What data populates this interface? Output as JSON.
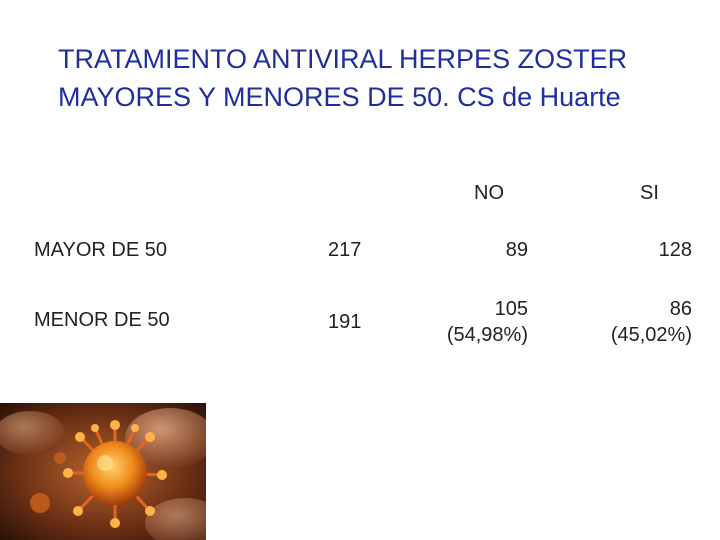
{
  "slide": {
    "title_line1": "TRATAMIENTO ANTIVIRAL HERPES ZOSTER",
    "title_line2": "MAYORES Y MENORES DE 50. CS de Huarte"
  },
  "table": {
    "headers": {
      "no": "NO",
      "si": "SI"
    },
    "rows": [
      {
        "label": "MAYOR DE 50",
        "total": "217",
        "no": "89",
        "no_pct": "",
        "si": "128",
        "si_pct": ""
      },
      {
        "label": "MENOR DE 50",
        "total": "191",
        "no": "105",
        "no_pct": "(54,98%)",
        "si": "86",
        "si_pct": "(45,02%)"
      }
    ]
  },
  "image": {
    "icon": "virus-illustration"
  }
}
